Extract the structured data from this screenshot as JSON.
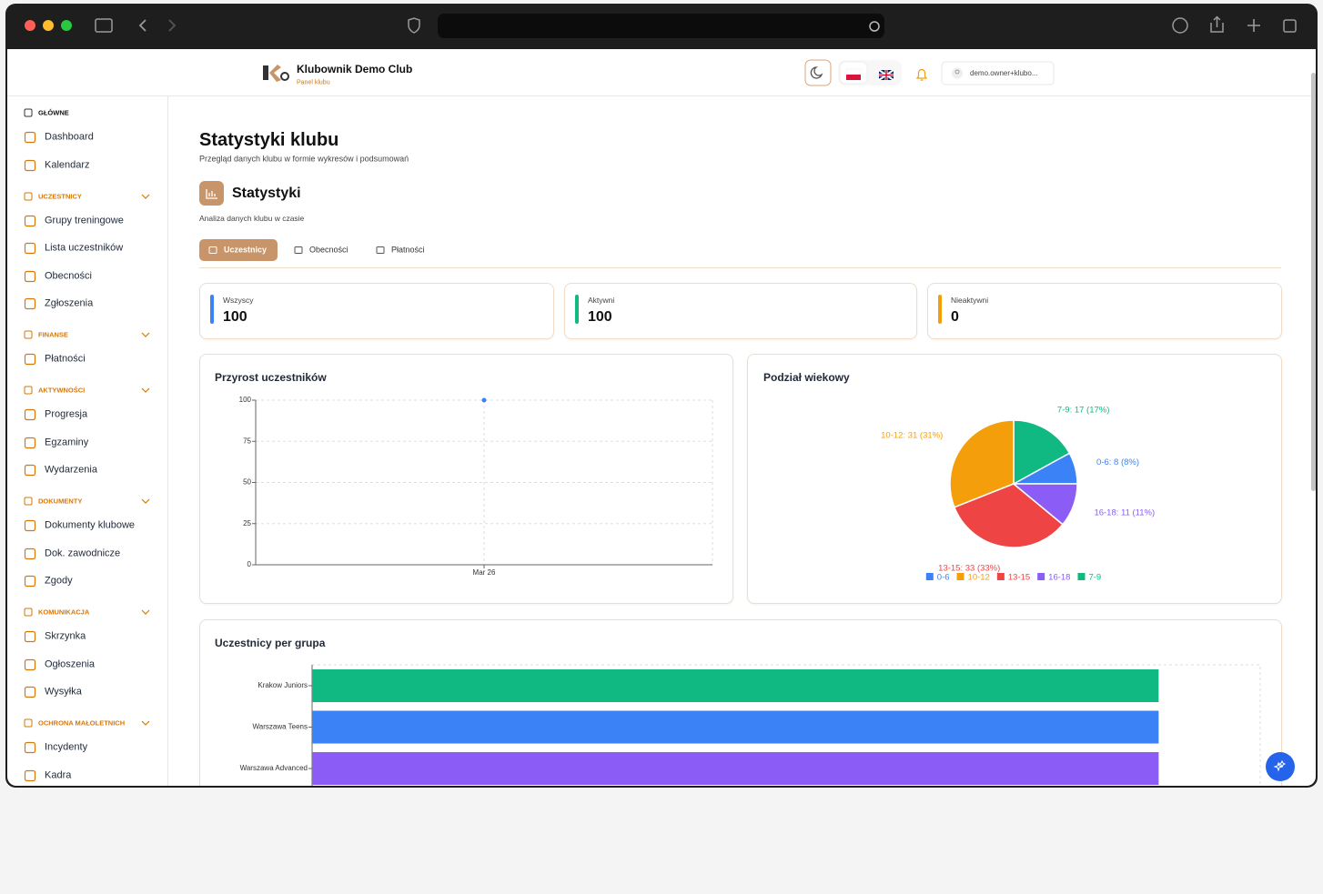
{
  "header": {
    "club_name": "Klubownik Demo Club",
    "subtitle": "Panel klubu",
    "user": "demo.owner+klubo..."
  },
  "sidebar": {
    "sections": [
      {
        "title": "GŁÓWNE",
        "items": [
          "Dashboard",
          "Kalendarz"
        ]
      },
      {
        "title": "UCZESTNICY",
        "items": [
          "Grupy treningowe",
          "Lista uczestników",
          "Obecności",
          "Zgłoszenia"
        ]
      },
      {
        "title": "FINANSE",
        "items": [
          "Płatności"
        ]
      },
      {
        "title": "AKTYWNOŚCI",
        "items": [
          "Progresja",
          "Egzaminy",
          "Wydarzenia"
        ]
      },
      {
        "title": "DOKUMENTY",
        "items": [
          "Dokumenty klubowe",
          "Dok. zawodnicze",
          "Zgody"
        ]
      },
      {
        "title": "KOMUNIKACJA",
        "items": [
          "Skrzynka",
          "Ogłoszenia",
          "Wysyłka"
        ]
      },
      {
        "title": "OCHRONA MAŁOLETNICH",
        "items": [
          "Incydenty",
          "Kadra"
        ]
      }
    ]
  },
  "page": {
    "title": "Statystyki klubu",
    "subtitle": "Przegląd danych klubu w formie wykresów i podsumowań",
    "section_title": "Statystyki",
    "section_subtitle": "Analiza danych klubu w czasie",
    "tabs": [
      "Uczestnicy",
      "Obecności",
      "Płatności"
    ],
    "active_tab": 0,
    "stats": [
      {
        "label": "Wszyscy",
        "value": 100,
        "color": "#3b82f6"
      },
      {
        "label": "Aktywni",
        "value": 100,
        "color": "#10b981"
      },
      {
        "label": "Nieaktywni",
        "value": 0,
        "color": "#f59e0b"
      }
    ]
  },
  "chart_data": [
    {
      "type": "line",
      "title": "Przyrost uczestników",
      "x": [
        "Mar 26"
      ],
      "series": [
        {
          "values": [
            100
          ],
          "color": "#3b82f6"
        }
      ],
      "ylim": [
        0,
        100
      ],
      "yticks": [
        0,
        25,
        50,
        75,
        100
      ],
      "grid": true
    },
    {
      "type": "pie",
      "title": "Podział wiekowy",
      "categories": [
        "0-6",
        "7-9",
        "10-12",
        "13-15",
        "16-18"
      ],
      "values": [
        8,
        17,
        31,
        33,
        11
      ],
      "value_labels": [
        "0-6: 8 (8%)",
        "7-9: 17 (17%)",
        "10-12: 31 (31%)",
        "13-15: 33 (33%)",
        "16-18: 11 (11%)"
      ],
      "colors": [
        "#3b82f6",
        "#10b981",
        "#f59e0b",
        "#ef4444",
        "#8b5cf6"
      ],
      "legend": [
        "0-6",
        "10-12",
        "13-15",
        "16-18",
        "7-9"
      ]
    },
    {
      "type": "bar",
      "title": "Uczestnicy per grupa",
      "categories": [
        "Krakow Juniors",
        "Warszawa Teens",
        "Warszawa Advanced"
      ],
      "values": [
        25,
        25,
        25
      ],
      "colors": [
        "#10b981",
        "#3b82f6",
        "#8b5cf6"
      ],
      "xlim": [
        0,
        28
      ]
    }
  ]
}
